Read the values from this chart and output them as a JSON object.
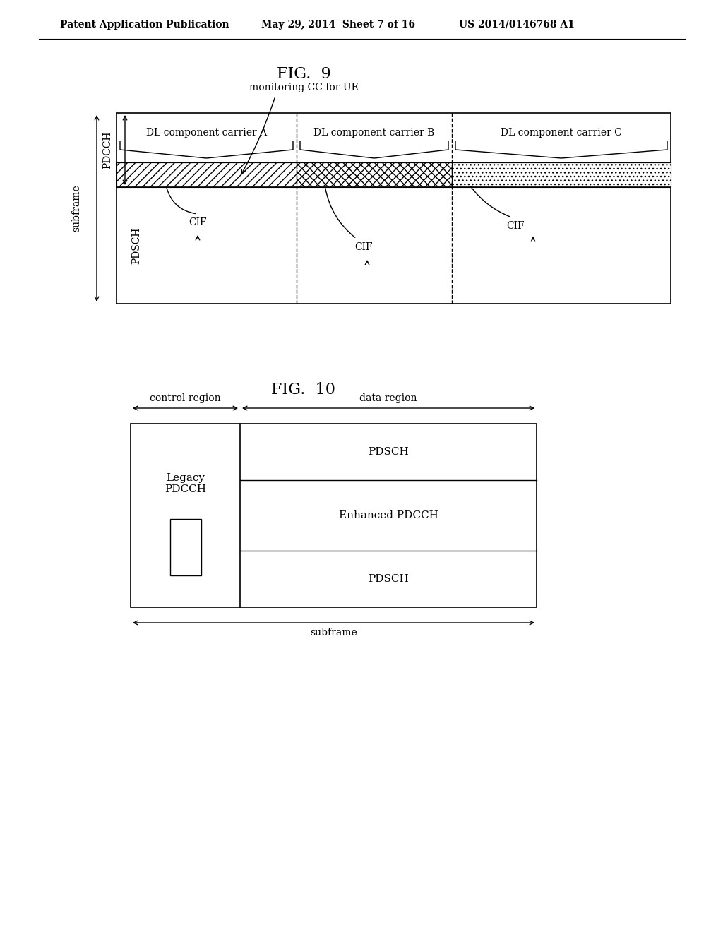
{
  "bg_color": "#ffffff",
  "header_text": "Patent Application Publication",
  "header_date": "May 29, 2014  Sheet 7 of 16",
  "header_patent": "US 2014/0146768 A1",
  "fig9_title": "FIG.  9",
  "fig10_title": "FIG.  10",
  "fig9_monitoring_label": "monitoring CC for UE",
  "fig9_carrier_a": "DL component carrier A",
  "fig9_carrier_b": "DL component carrier B",
  "fig9_carrier_c": "DL component carrier C",
  "fig9_pdcch": "PDCCH",
  "fig9_pdsch": "PDSCH",
  "fig9_subframe": "subframe",
  "fig9_cif1": "CIF",
  "fig9_cif2": "CIF",
  "fig9_cif3": "CIF",
  "fig10_control": "control region",
  "fig10_data": "data region",
  "fig10_pdsch1": "PDSCH",
  "fig10_enhanced": "Enhanced PDCCH",
  "fig10_legacy": "Legacy\nPDCCH",
  "fig10_pdsch2": "PDSCH",
  "fig10_subframe": "subframe",
  "text_color": "#000000",
  "line_color": "#000000"
}
